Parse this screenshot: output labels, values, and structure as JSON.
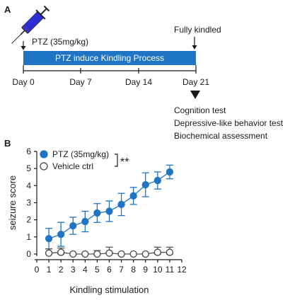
{
  "panel_a": {
    "label": "A",
    "drug_label": "PTZ  (35mg/kg)",
    "end_label": "Fully kindled",
    "process_label": "PTZ induce Kindling Process",
    "days": [
      "Day 0",
      "Day 7",
      "Day 14",
      "Day 21"
    ],
    "tests": [
      "Cognition test",
      "Depressive-like behavior test",
      "Biochemical assessment"
    ],
    "colors": {
      "bar": "#1f74c4",
      "bar_text": "#ffffff",
      "syringe": "#3a3ab8"
    },
    "icon": "syringe-icon"
  },
  "chart_data": {
    "panel_label": "B",
    "type": "line",
    "x": [
      1,
      2,
      3,
      4,
      5,
      6,
      7,
      8,
      9,
      10,
      11
    ],
    "series": [
      {
        "name": "PTZ (35mg/kg)",
        "values": [
          0.9,
          1.15,
          1.65,
          1.9,
          2.4,
          2.5,
          2.9,
          3.4,
          4.05,
          4.3,
          4.8
        ],
        "errors": [
          0.6,
          0.7,
          0.5,
          0.6,
          0.55,
          0.6,
          0.65,
          0.5,
          0.7,
          0.5,
          0.4
        ],
        "color": "#1f74c4",
        "marker": "filled-circle"
      },
      {
        "name": "Vehicle ctrl",
        "values": [
          0.05,
          0.1,
          0.0,
          0.0,
          0.0,
          0.05,
          0.0,
          0.0,
          0.0,
          0.1,
          0.1
        ],
        "errors": [
          0.25,
          0.25,
          0.0,
          0.0,
          0.2,
          0.35,
          0.0,
          0.0,
          0.0,
          0.3,
          0.3
        ],
        "color": "#555555",
        "marker": "open-circle"
      }
    ],
    "significance": "**",
    "xlabel": "Kindling stimulation",
    "ylabel": "seizure score",
    "xlim": [
      0,
      12
    ],
    "ylim": [
      0,
      6
    ],
    "xticks": [
      "0",
      "1",
      "2",
      "3",
      "4",
      "5",
      "6",
      "7",
      "8",
      "9",
      "10",
      "11",
      "12"
    ],
    "yticks": [
      "0",
      "1",
      "2",
      "3",
      "4",
      "5",
      "6"
    ],
    "grid": false,
    "legend_position": "top-left"
  }
}
